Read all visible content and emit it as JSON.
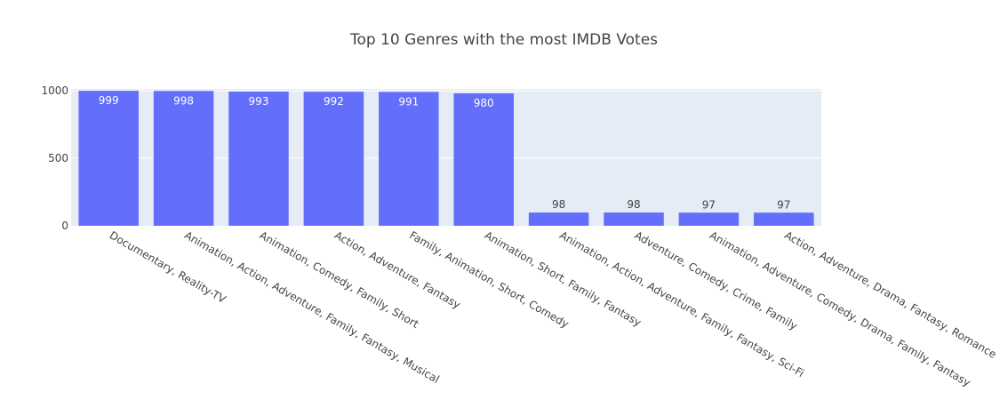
{
  "chart_data": {
    "type": "bar",
    "title": "Top 10 Genres with the most IMDB Votes",
    "xlabel": "",
    "ylabel": "",
    "categories": [
      "Documentary, Reality-TV",
      "Animation, Action, Adventure, Family, Fantasy, Musical",
      "Animation, Comedy, Family, Short",
      "Action, Adventure, Fantasy",
      "Family, Animation, Short, Comedy",
      "Animation, Short, Family, Fantasy",
      "Animation, Action, Adventure, Family, Fantasy, Sci-Fi",
      "Adventure, Comedy, Crime, Family",
      "Animation, Adventure, Comedy, Drama, Family, Fantasy",
      "Action, Adventure, Drama, Fantasy, Romance"
    ],
    "values": [
      999,
      998,
      993,
      992,
      991,
      980,
      98,
      98,
      97,
      97
    ],
    "data_labels": [
      "999",
      "998",
      "993",
      "992",
      "991",
      "980",
      "98",
      "98",
      "97",
      "97"
    ],
    "ylim": [
      0,
      1000
    ],
    "yticks": [
      0,
      500,
      1000
    ],
    "ytick_labels": [
      "0",
      "500",
      "1000"
    ],
    "grid": true,
    "colors": {
      "bar": "#636efa",
      "plot_bg": "#e5ecf6",
      "grid": "#ffffff",
      "text": "#444444"
    }
  }
}
